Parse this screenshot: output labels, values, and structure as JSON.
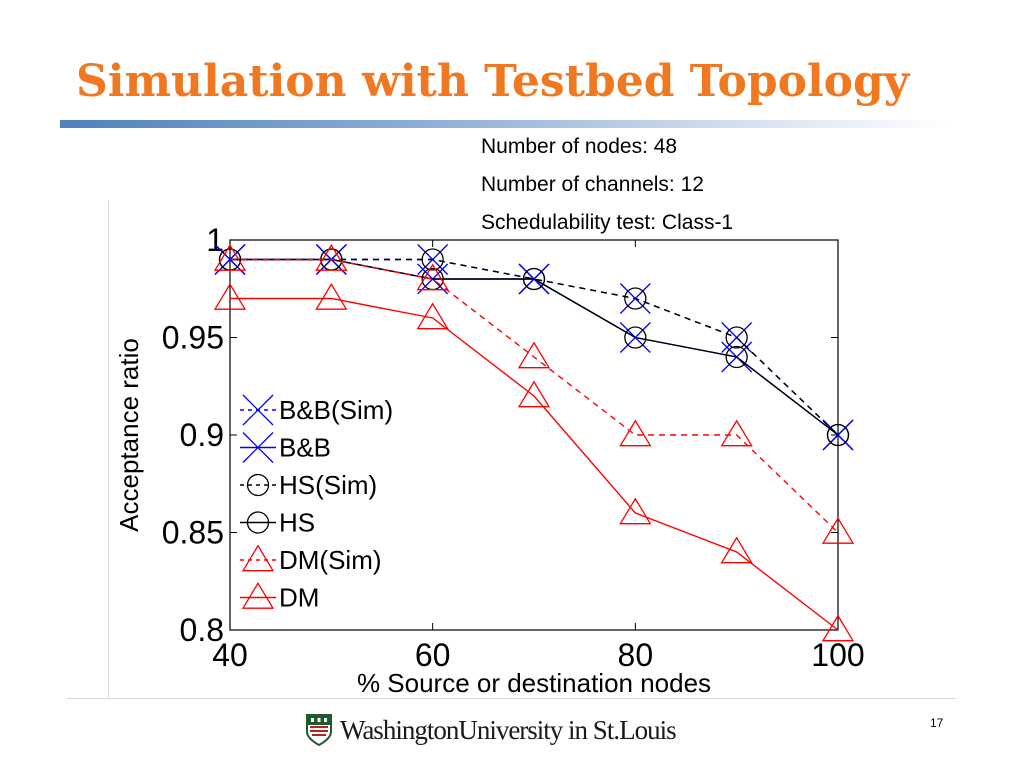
{
  "slide": {
    "title": "Simulation with Testbed Topology",
    "info": [
      "Number of nodes: 48",
      "Number of channels: 12",
      "Schedulability test: Class-1"
    ],
    "footer_logo_text": "WashingtonUniversity in St.Louis",
    "page_number": "17",
    "colors": {
      "title": "#f07820",
      "rule": "#4f81bd"
    }
  },
  "chart_data": {
    "type": "line",
    "x": [
      40,
      50,
      60,
      70,
      80,
      90,
      100
    ],
    "xlabel": "% Source or destination nodes",
    "ylabel": "Acceptance ratio",
    "xlim": [
      40,
      100
    ],
    "ylim": [
      0.8,
      1
    ],
    "xticks": [
      40,
      60,
      80,
      100
    ],
    "xtick_labels": [
      "40",
      "60",
      "80",
      "100"
    ],
    "yticks": [
      0.8,
      0.85,
      0.9,
      0.95,
      1
    ],
    "ytick_labels": [
      "0.8",
      "0.85",
      "0.9",
      "0.95",
      "1"
    ],
    "grid": false,
    "legend_position": "left",
    "series": [
      {
        "name": "B&B(Sim)",
        "color": "#0000ff",
        "dashed": true,
        "marker": "x",
        "values": [
          0.99,
          0.99,
          0.99,
          0.98,
          0.97,
          0.95,
          0.9
        ]
      },
      {
        "name": "B&B",
        "color": "#0000ff",
        "dashed": false,
        "marker": "x",
        "values": [
          0.99,
          0.99,
          0.98,
          0.98,
          0.95,
          0.94,
          0.9
        ]
      },
      {
        "name": "HS(Sim)",
        "color": "#000000",
        "dashed": true,
        "marker": "circle",
        "values": [
          0.99,
          0.99,
          0.99,
          0.98,
          0.97,
          0.95,
          0.9
        ]
      },
      {
        "name": "HS",
        "color": "#000000",
        "dashed": false,
        "marker": "circle",
        "values": [
          0.99,
          0.99,
          0.98,
          0.98,
          0.95,
          0.94,
          0.9
        ]
      },
      {
        "name": "DM(Sim)",
        "color": "#ff0000",
        "dashed": true,
        "marker": "triangle",
        "values": [
          0.99,
          0.99,
          0.98,
          0.94,
          0.9,
          0.9,
          0.85
        ]
      },
      {
        "name": "DM",
        "color": "#ff0000",
        "dashed": false,
        "marker": "triangle",
        "values": [
          0.97,
          0.97,
          0.96,
          0.92,
          0.86,
          0.84,
          0.8
        ]
      }
    ]
  }
}
